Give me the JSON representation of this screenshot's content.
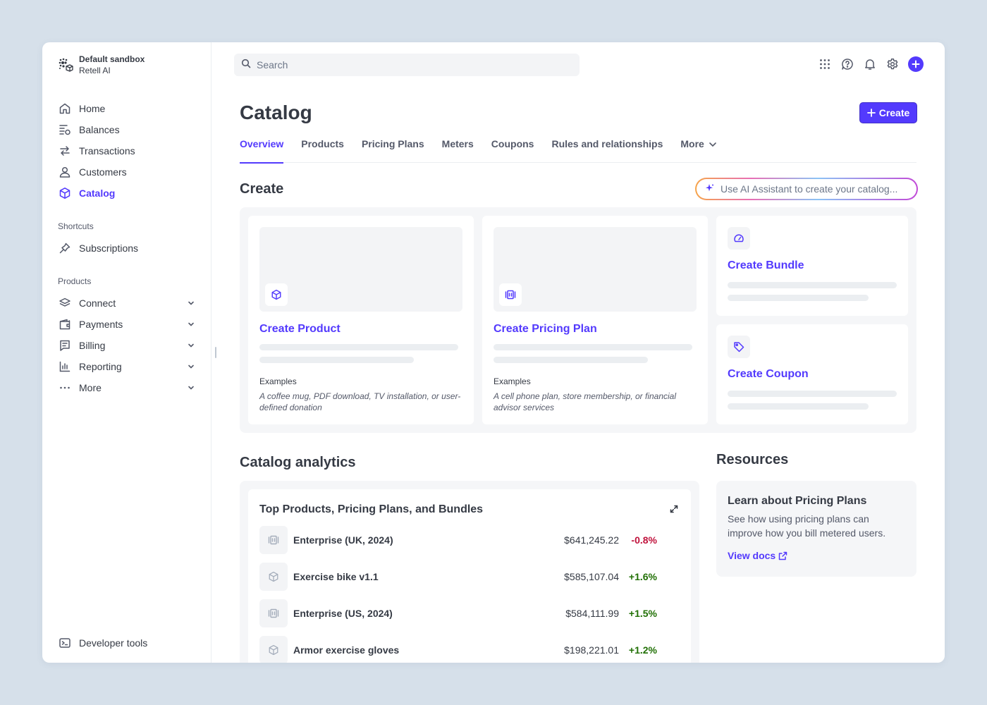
{
  "account": {
    "name": "Default sandbox",
    "org": "Retell AI"
  },
  "sidebar": {
    "main_items": [
      {
        "label": "Home",
        "icon": "home-icon"
      },
      {
        "label": "Balances",
        "icon": "balances-icon"
      },
      {
        "label": "Transactions",
        "icon": "transactions-icon"
      },
      {
        "label": "Customers",
        "icon": "customers-icon"
      },
      {
        "label": "Catalog",
        "icon": "catalog-icon",
        "active": true
      }
    ],
    "shortcuts_label": "Shortcuts",
    "shortcuts": [
      {
        "label": "Subscriptions",
        "icon": "pin-icon"
      }
    ],
    "products_label": "Products",
    "products": [
      {
        "label": "Connect",
        "icon": "connect-icon"
      },
      {
        "label": "Payments",
        "icon": "payments-icon"
      },
      {
        "label": "Billing",
        "icon": "billing-icon"
      },
      {
        "label": "Reporting",
        "icon": "reporting-icon"
      },
      {
        "label": "More",
        "icon": "more-icon"
      }
    ],
    "developer_tools": "Developer tools"
  },
  "search": {
    "placeholder": "Search"
  },
  "header": {
    "title": "Catalog",
    "create_label": "Create"
  },
  "tabs": [
    "Overview",
    "Products",
    "Pricing Plans",
    "Meters",
    "Coupons",
    "Rules and relationships",
    "More"
  ],
  "create_section": {
    "heading": "Create",
    "ai_placeholder": "Use AI Assistant to create your catalog...",
    "product": {
      "title": "Create Product",
      "examples_label": "Examples",
      "examples_text": "A coffee mug, PDF download, TV installation, or user-defined donation"
    },
    "pricing_plan": {
      "title": "Create Pricing Plan",
      "examples_label": "Examples",
      "examples_text": "A cell phone plan, store membership, or financial advisor services"
    },
    "bundle": {
      "title": "Create Bundle"
    },
    "coupon": {
      "title": "Create Coupon"
    }
  },
  "analytics": {
    "heading": "Catalog analytics",
    "card_title": "Top Products, Pricing Plans, and Bundles",
    "rows": [
      {
        "name": "Enterprise (UK, 2024)",
        "value": "$641,245.22",
        "change": "-0.8%",
        "type": "plan",
        "trend": "neg"
      },
      {
        "name": "Exercise bike v1.1",
        "value": "$585,107.04",
        "change": "+1.6%",
        "type": "product",
        "trend": "pos"
      },
      {
        "name": "Enterprise (US, 2024)",
        "value": "$584,111.99",
        "change": "+1.5%",
        "type": "plan",
        "trend": "pos"
      },
      {
        "name": "Armor exercise gloves",
        "value": "$198,221.01",
        "change": "+1.2%",
        "type": "product",
        "trend": "pos"
      }
    ]
  },
  "resources": {
    "heading": "Resources",
    "title": "Learn about Pricing Plans",
    "description": "See how using pricing plans can improve how you bill metered users.",
    "link": "View docs"
  },
  "colors": {
    "accent": "#533afd",
    "negative": "#c0123c",
    "positive": "#217005"
  }
}
